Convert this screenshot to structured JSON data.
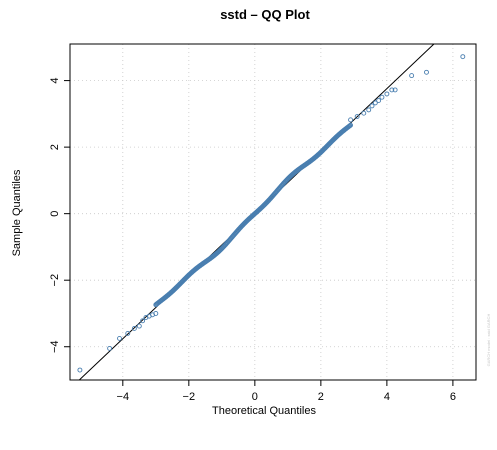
{
  "chart_data": {
    "type": "scatter",
    "title": "sstd – QQ Plot",
    "xlabel": "Theoretical Quantiles",
    "ylabel": "Sample Quantiles",
    "xlim": [
      -5.6,
      6.7
    ],
    "ylim": [
      -5.0,
      5.1
    ],
    "x_ticks": [
      -4,
      -2,
      0,
      2,
      4,
      6
    ],
    "y_ticks": [
      -4,
      -2,
      0,
      2,
      4
    ],
    "x_tick_labels": [
      "−4",
      "−2",
      "0",
      "2",
      "4",
      "6"
    ],
    "y_tick_labels": [
      "−4",
      "−2",
      "0",
      "2",
      "4"
    ],
    "grid": true,
    "reference_line": {
      "slope": 0.94,
      "intercept": 0.0
    },
    "point_color": "#4a7fb0",
    "line_color": "#000000",
    "grid_color": "#c8c8c8",
    "tail_points": [
      {
        "x": -5.3,
        "y": -4.7
      },
      {
        "x": -4.4,
        "y": -4.05
      },
      {
        "x": -4.1,
        "y": -3.75
      },
      {
        "x": -3.85,
        "y": -3.6
      },
      {
        "x": -3.65,
        "y": -3.45
      },
      {
        "x": -3.5,
        "y": -3.38
      },
      {
        "x": -3.4,
        "y": -3.22
      },
      {
        "x": -3.3,
        "y": -3.12
      },
      {
        "x": -3.2,
        "y": -3.08
      },
      {
        "x": -3.1,
        "y": -3.04
      },
      {
        "x": -3.0,
        "y": -3.0
      },
      {
        "x": 2.9,
        "y": 2.82
      },
      {
        "x": 3.1,
        "y": 2.92
      },
      {
        "x": 3.3,
        "y": 3.02
      },
      {
        "x": 3.45,
        "y": 3.12
      },
      {
        "x": 3.55,
        "y": 3.24
      },
      {
        "x": 3.65,
        "y": 3.33
      },
      {
        "x": 3.75,
        "y": 3.4
      },
      {
        "x": 3.85,
        "y": 3.5
      },
      {
        "x": 4.0,
        "y": 3.6
      },
      {
        "x": 4.15,
        "y": 3.72
      },
      {
        "x": 4.25,
        "y": 3.72
      },
      {
        "x": 4.75,
        "y": 4.15
      },
      {
        "x": 5.2,
        "y": 4.25
      },
      {
        "x": 6.3,
        "y": 4.72
      }
    ],
    "body_x_range": [
      -3.0,
      2.9
    ],
    "body_point_count": 300,
    "watermark": "GARCH model : sstd   GARCH"
  }
}
